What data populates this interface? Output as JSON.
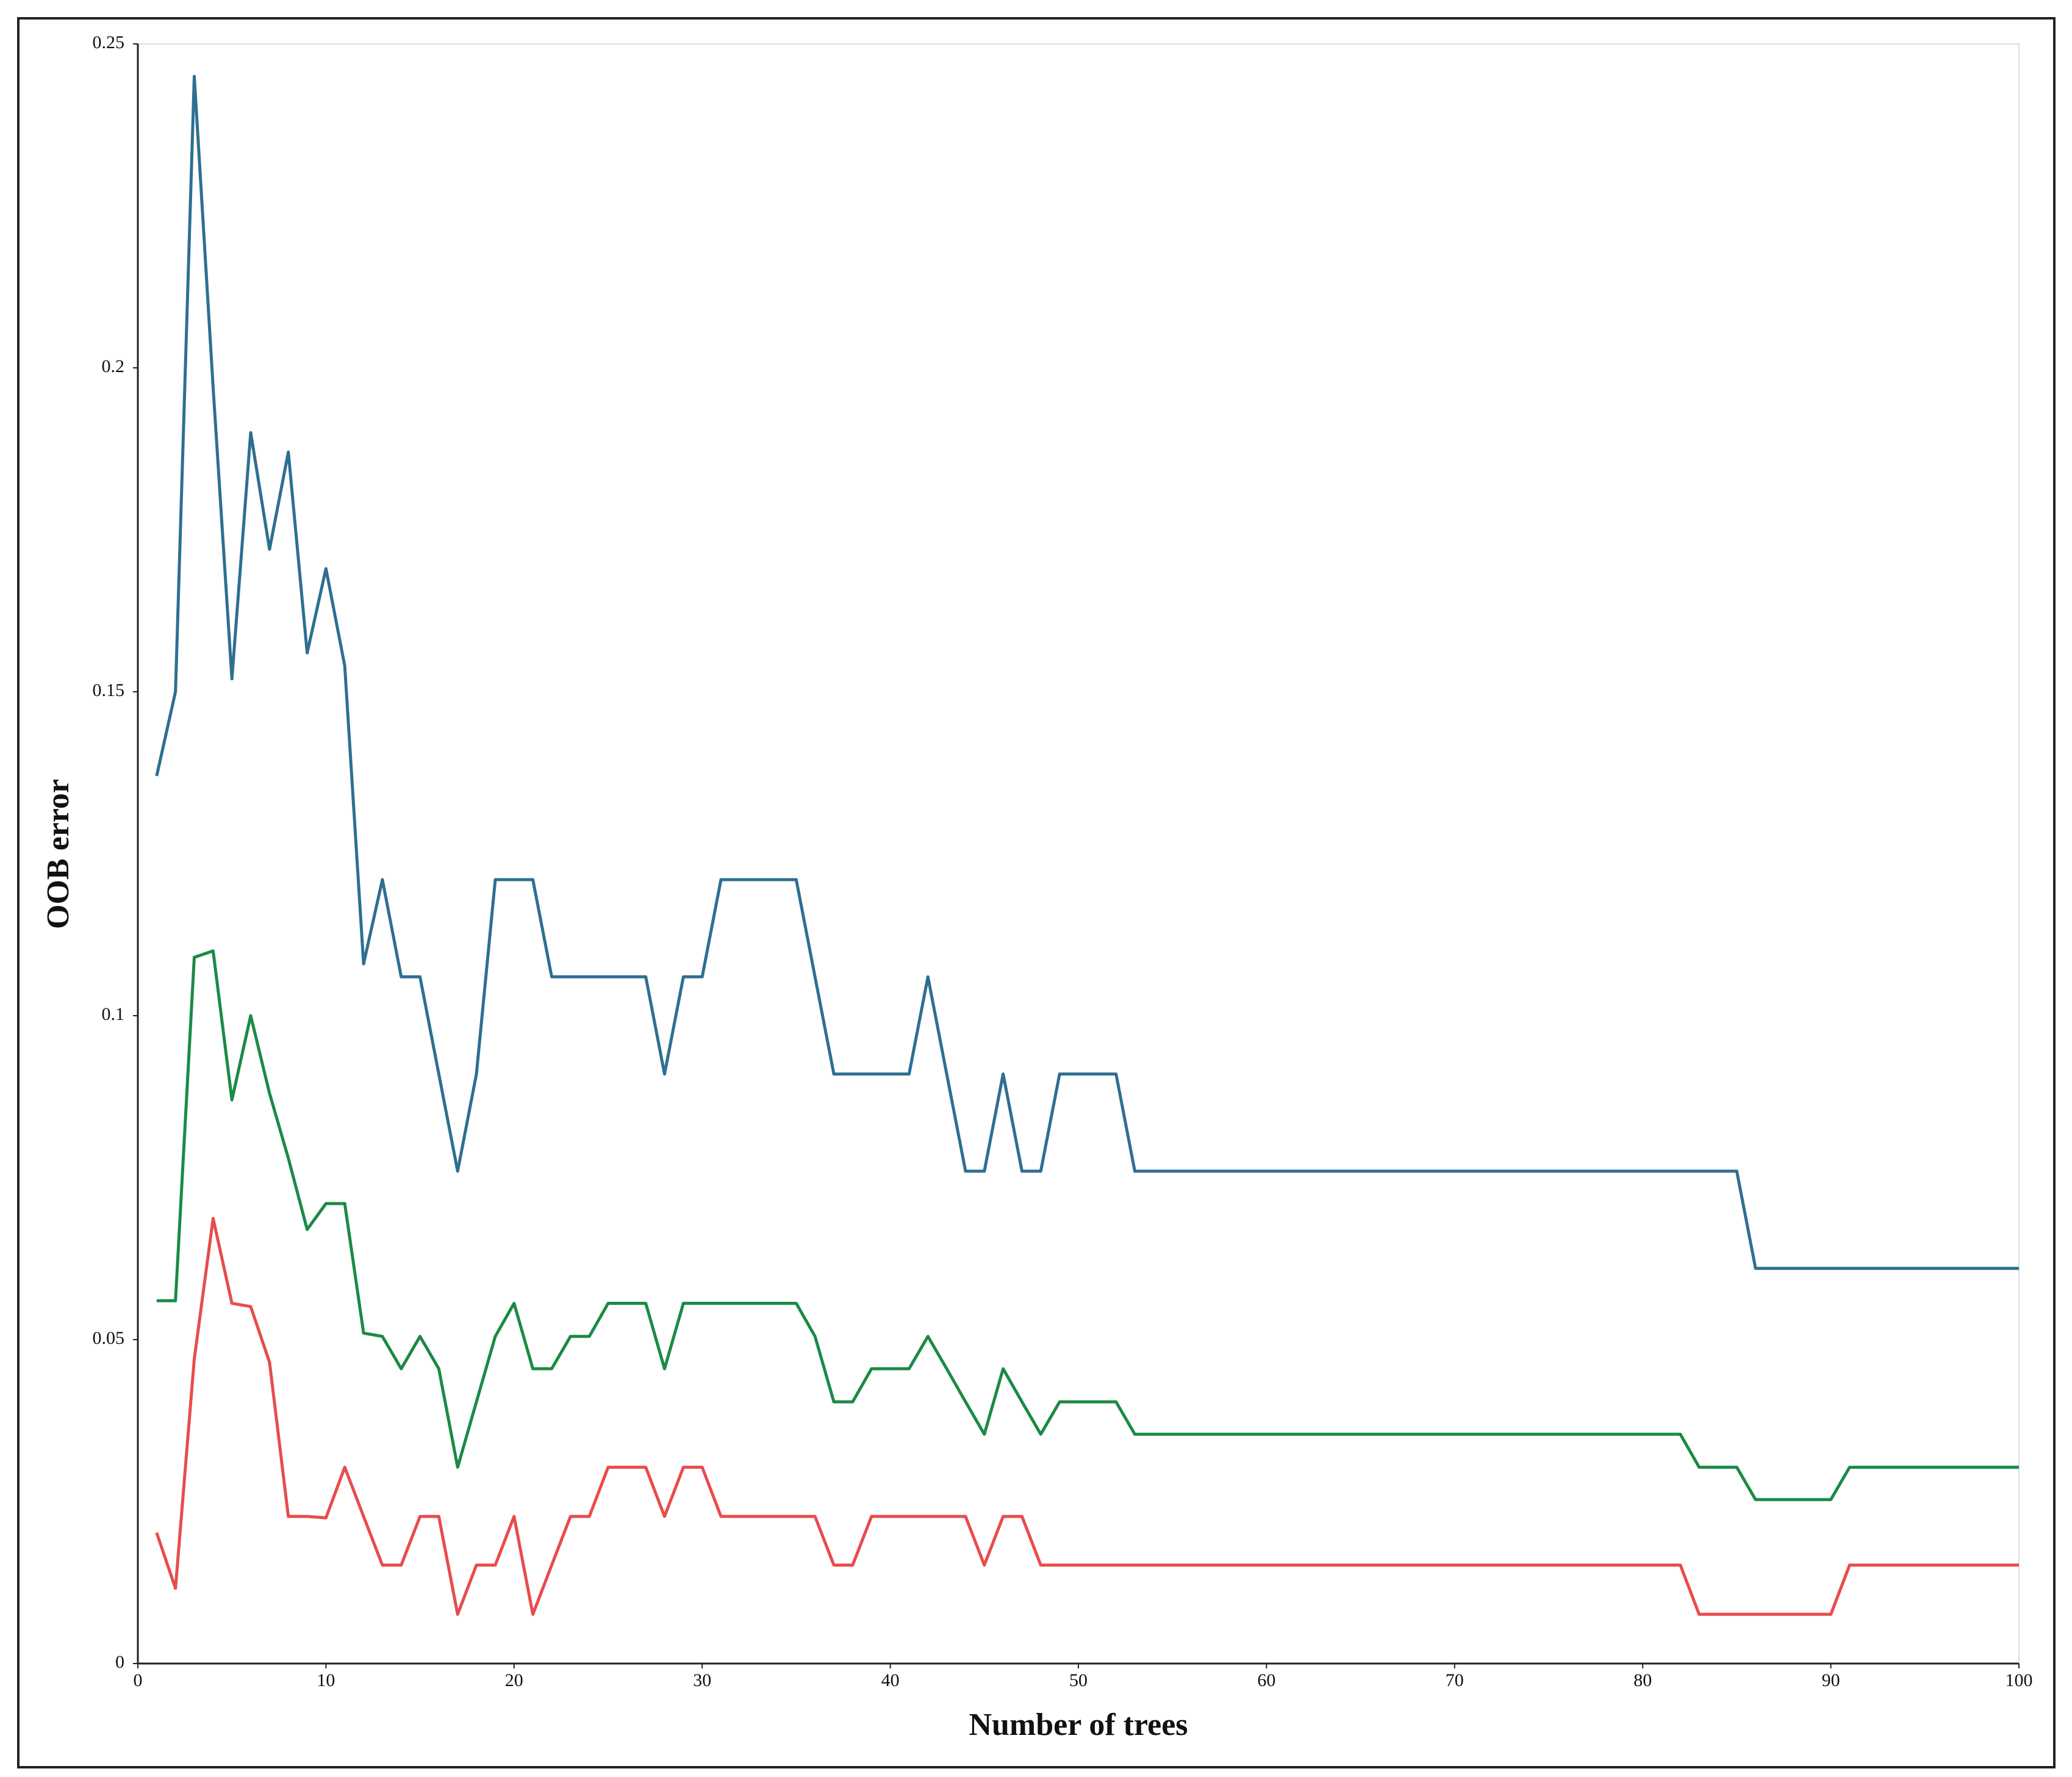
{
  "chart_data": {
    "type": "line",
    "xlabel": "Number of trees",
    "ylabel": "OOB error",
    "x": [
      1,
      2,
      3,
      4,
      5,
      6,
      7,
      8,
      9,
      10,
      11,
      12,
      13,
      14,
      15,
      16,
      17,
      18,
      19,
      20,
      21,
      22,
      23,
      24,
      25,
      26,
      27,
      28,
      29,
      30,
      31,
      32,
      33,
      34,
      35,
      36,
      37,
      38,
      39,
      40,
      41,
      42,
      43,
      44,
      45,
      46,
      47,
      48,
      49,
      50,
      51,
      52,
      53,
      54,
      55,
      56,
      57,
      58,
      59,
      60,
      61,
      62,
      63,
      64,
      65,
      66,
      67,
      68,
      69,
      70,
      71,
      72,
      73,
      74,
      75,
      76,
      77,
      78,
      79,
      80,
      81,
      82,
      83,
      84,
      85,
      86,
      87,
      88,
      89,
      90,
      91,
      92,
      93,
      94,
      95,
      96,
      97,
      98,
      99,
      100
    ],
    "series": [
      {
        "color": "#2e6f91",
        "values": [
          0.137,
          0.15,
          0.245,
          0.197,
          0.152,
          0.19,
          0.172,
          0.187,
          0.156,
          0.169,
          0.154,
          0.108,
          0.121,
          0.106,
          0.106,
          0.091,
          0.076,
          0.091,
          0.121,
          0.121,
          0.121,
          0.106,
          0.106,
          0.106,
          0.106,
          0.106,
          0.106,
          0.091,
          0.106,
          0.106,
          0.121,
          0.121,
          0.121,
          0.121,
          0.121,
          0.106,
          0.091,
          0.091,
          0.091,
          0.091,
          0.091,
          0.106,
          0.091,
          0.076,
          0.076,
          0.091,
          0.076,
          0.076,
          0.091,
          0.091,
          0.091,
          0.091,
          0.076,
          0.076,
          0.076,
          0.076,
          0.076,
          0.076,
          0.076,
          0.076,
          0.076,
          0.076,
          0.076,
          0.076,
          0.076,
          0.076,
          0.076,
          0.076,
          0.076,
          0.076,
          0.076,
          0.076,
          0.076,
          0.076,
          0.076,
          0.076,
          0.076,
          0.076,
          0.076,
          0.076,
          0.076,
          0.076,
          0.076,
          0.076,
          0.076,
          0.061,
          0.061,
          0.061,
          0.061,
          0.061,
          0.061,
          0.061,
          0.061,
          0.061,
          0.061,
          0.061,
          0.061,
          0.061,
          0.061,
          0.061
        ]
      },
      {
        "color": "#1b8a45",
        "values": [
          0.056,
          0.056,
          0.109,
          0.11,
          0.087,
          0.1,
          0.088,
          0.078,
          0.067,
          0.071,
          0.071,
          0.051,
          0.0505,
          0.0455,
          0.0505,
          0.0455,
          0.0303,
          0.0404,
          0.0505,
          0.0556,
          0.0455,
          0.0455,
          0.0505,
          0.0505,
          0.0556,
          0.0556,
          0.0556,
          0.0455,
          0.0556,
          0.0556,
          0.0556,
          0.0556,
          0.0556,
          0.0556,
          0.0556,
          0.0505,
          0.0404,
          0.0404,
          0.0455,
          0.0455,
          0.0455,
          0.0505,
          0.0455,
          0.0404,
          0.0354,
          0.0455,
          0.0404,
          0.0354,
          0.0404,
          0.0404,
          0.0404,
          0.0404,
          0.0354,
          0.0354,
          0.0354,
          0.0354,
          0.0354,
          0.0354,
          0.0354,
          0.0354,
          0.0354,
          0.0354,
          0.0354,
          0.0354,
          0.0354,
          0.0354,
          0.0354,
          0.0354,
          0.0354,
          0.0354,
          0.0354,
          0.0354,
          0.0354,
          0.0354,
          0.0354,
          0.0354,
          0.0354,
          0.0354,
          0.0354,
          0.0354,
          0.0354,
          0.0354,
          0.0303,
          0.0303,
          0.0303,
          0.0253,
          0.0253,
          0.0253,
          0.0253,
          0.0253,
          0.0303,
          0.0303,
          0.0303,
          0.0303,
          0.0303,
          0.0303,
          0.0303,
          0.0303,
          0.0303,
          0.0303
        ]
      },
      {
        "color": "#e84c4c",
        "values": [
          0.0202,
          0.0116,
          0.047,
          0.0687,
          0.0556,
          0.0551,
          0.0465,
          0.0227,
          0.0227,
          0.0225,
          0.0303,
          0.0227,
          0.0152,
          0.0152,
          0.0227,
          0.0227,
          0.0076,
          0.0152,
          0.0152,
          0.0227,
          0.0076,
          0.0152,
          0.0227,
          0.0227,
          0.0303,
          0.0303,
          0.0303,
          0.0227,
          0.0303,
          0.0303,
          0.0227,
          0.0227,
          0.0227,
          0.0227,
          0.0227,
          0.0227,
          0.0152,
          0.0152,
          0.0227,
          0.0227,
          0.0227,
          0.0227,
          0.0227,
          0.0227,
          0.0152,
          0.0227,
          0.0227,
          0.0152,
          0.0152,
          0.0152,
          0.0152,
          0.0152,
          0.0152,
          0.0152,
          0.0152,
          0.0152,
          0.0152,
          0.0152,
          0.0152,
          0.0152,
          0.0152,
          0.0152,
          0.0152,
          0.0152,
          0.0152,
          0.0152,
          0.0152,
          0.0152,
          0.0152,
          0.0152,
          0.0152,
          0.0152,
          0.0152,
          0.0152,
          0.0152,
          0.0152,
          0.0152,
          0.0152,
          0.0152,
          0.0152,
          0.0152,
          0.0152,
          0.0076,
          0.0076,
          0.0076,
          0.0076,
          0.0076,
          0.0076,
          0.0076,
          0.0076,
          0.0152,
          0.0152,
          0.0152,
          0.0152,
          0.0152,
          0.0152,
          0.0152,
          0.0152,
          0.0152,
          0.0152
        ]
      }
    ],
    "xlim": [
      0,
      100
    ],
    "xticks": [
      0,
      10,
      20,
      30,
      40,
      50,
      60,
      70,
      80,
      90,
      100
    ],
    "ylim": [
      0,
      0.25
    ],
    "yticks": [
      0,
      0.05,
      0.1,
      0.15,
      0.2,
      0.25
    ],
    "grid": false
  }
}
